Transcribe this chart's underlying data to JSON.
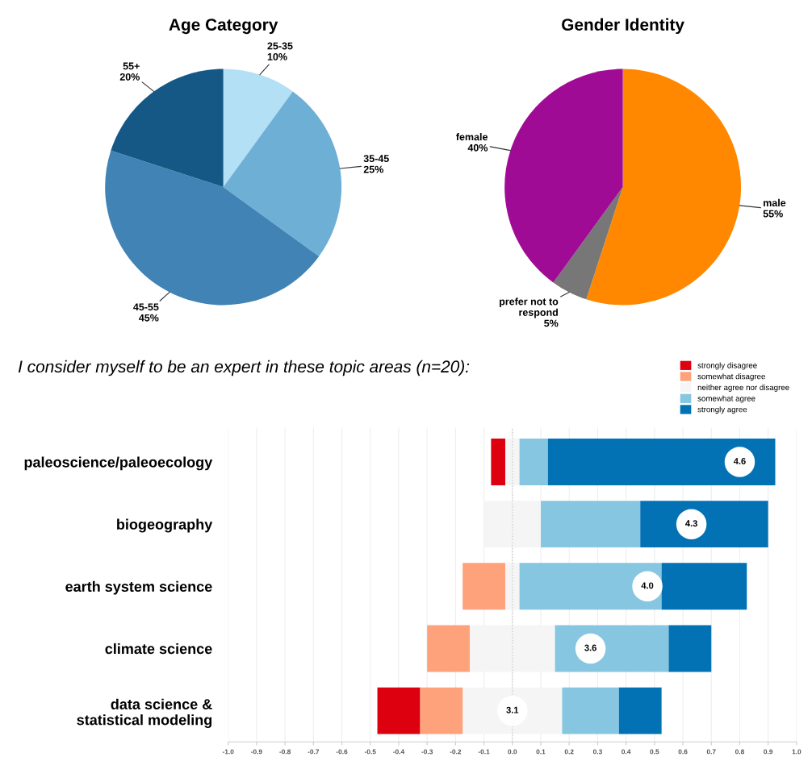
{
  "chart_data": [
    {
      "type": "pie",
      "title": "Age Category",
      "categories": [
        "25-35",
        "35-45",
        "45-55",
        "55+"
      ],
      "values": [
        10,
        25,
        45,
        20
      ],
      "value_labels": [
        "10%",
        "25%",
        "45%",
        "20%"
      ],
      "colors": [
        "#b3e0f4",
        "#6eafd6",
        "#4183b5",
        "#155885"
      ]
    },
    {
      "type": "pie",
      "title": "Gender Identity",
      "categories": [
        "male",
        "prefer not to respond",
        "female"
      ],
      "values": [
        55,
        5,
        40
      ],
      "value_labels": [
        "55%",
        "5%",
        "40%"
      ],
      "colors": [
        "#ff8800",
        "#777777",
        "#a00b96"
      ]
    },
    {
      "type": "bar",
      "orientation": "horizontal",
      "stacked": true,
      "title": "I consider myself to be an expert in these topic areas (n=20):",
      "categories": [
        "paleoscience/paleoecology",
        "biogeography",
        "earth system science",
        "climate science",
        "data science & statistical modeling"
      ],
      "series": [
        {
          "name": "neither agree nor disagree",
          "color": "#f5f5f5",
          "values": [
            -0.025,
            -0.1,
            -0.025,
            -0.15,
            -0.175
          ]
        },
        {
          "name": "somewhat disagree",
          "color": "#fea27b",
          "values": [
            0,
            0,
            -0.15,
            -0.15,
            -0.15
          ]
        },
        {
          "name": "strongly disagree",
          "color": "#dd000f",
          "values": [
            -0.05,
            0,
            0,
            0,
            -0.15
          ]
        },
        {
          "color": "#f5f5f5",
          "values": [
            0.025,
            0.1,
            0.025,
            0.15,
            0.175
          ]
        },
        {
          "name": "somewhat agree",
          "color": "#86c6e1",
          "values": [
            0.1,
            0.35,
            0.5,
            0.4,
            0.2
          ]
        },
        {
          "name": "strongly agree",
          "color": "#0272b5",
          "values": [
            0.8,
            0.45,
            0.3,
            0.15,
            0.15
          ]
        }
      ],
      "xlim": [
        -1.0,
        1.0
      ],
      "xticks": [
        {
          "value": -1.0,
          "label": "-1.0"
        },
        {
          "value": -0.9,
          "label": "-0.9"
        },
        {
          "value": -0.8,
          "label": "-0.8"
        },
        {
          "value": -0.7,
          "label": "-0.7"
        },
        {
          "value": -0.6,
          "label": "-0.6"
        },
        {
          "value": -0.5,
          "label": "-0.5"
        },
        {
          "value": -0.4,
          "label": "-0.4"
        },
        {
          "value": -0.3,
          "label": "-0.3"
        },
        {
          "value": -0.2,
          "label": "-0.2"
        },
        {
          "value": -0.1,
          "label": "-0.1"
        },
        {
          "value": 0.0,
          "label": "0.0"
        },
        {
          "value": 0.1,
          "label": "0.1"
        },
        {
          "value": 0.2,
          "label": "0.2"
        },
        {
          "value": 0.3,
          "label": "0.3"
        },
        {
          "value": 0.4,
          "label": "0.4"
        },
        {
          "value": 0.5,
          "label": "0.5"
        },
        {
          "value": 0.6,
          "label": "0.6"
        },
        {
          "value": 0.7,
          "label": "0.7"
        },
        {
          "value": 0.8,
          "label": "0.8"
        },
        {
          "value": 0.9,
          "label": "0.9"
        },
        {
          "value": 1.0,
          "label": "1.0"
        }
      ],
      "grid": "x",
      "legend": "top right",
      "ref_lines": [
        {
          "axis": "x",
          "value": 0,
          "label": null,
          "color": "#cccccc",
          "line_style": "dotted"
        }
      ],
      "annotations": [
        {
          "text": "4.6",
          "x": 0.8,
          "y": "paleoscience/paleoecology"
        },
        {
          "text": "4.3",
          "x": 0.63,
          "y": "biogeography"
        },
        {
          "text": "4.0",
          "x": 0.475,
          "y": "earth system science"
        },
        {
          "text": "3.6",
          "x": 0.275,
          "y": "climate science"
        },
        {
          "text": "3.1",
          "x": 0.0,
          "y": "data science & statistical modeling"
        }
      ]
    }
  ]
}
